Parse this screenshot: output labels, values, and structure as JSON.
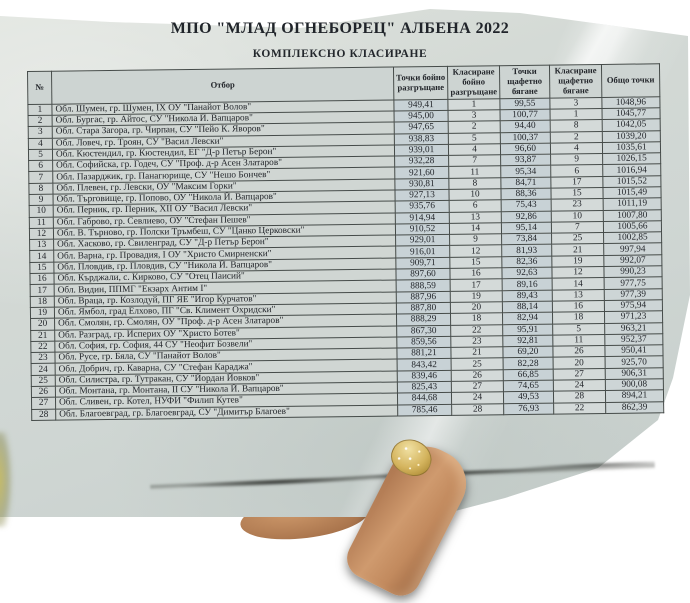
{
  "document": {
    "title": "МПО \"МЛАД ОГНЕБОРЕЦ\" АЛБЕНА 2022",
    "subtitle": "КОМПЛЕКСНО КЛАСИРАНЕ",
    "table": {
      "columns": [
        "№",
        "Отбор",
        "Точки бойно разгръщане",
        "Класиране бойно разгръщане",
        "Точки щафетно бягане",
        "Класиране щафетно бягане",
        "Общо точки"
      ],
      "rows": [
        {
          "num": 1,
          "team": "Обл. Шумен, гр. Шумен, IX ОУ \"Панайот Волов\"",
          "combat_points": "949,41",
          "combat_rank": "1",
          "relay_points": "99,55",
          "relay_rank": "3",
          "total": "1048,96"
        },
        {
          "num": 2,
          "team": "Обл. Бургас, гр. Айтос, СУ \"Никола Й. Вапцаров\"",
          "combat_points": "945,00",
          "combat_rank": "3",
          "relay_points": "100,77",
          "relay_rank": "1",
          "total": "1045,77"
        },
        {
          "num": 3,
          "team": "Обл. Стара Загора, гр. Чирпан, СУ \"Пейо К. Яворов\"",
          "combat_points": "947,65",
          "combat_rank": "2",
          "relay_points": "94,40",
          "relay_rank": "8",
          "total": "1042,05"
        },
        {
          "num": 4,
          "team": "Обл. Ловеч, гр. Троян, СУ \"Васил Левски\"",
          "combat_points": "938,83",
          "combat_rank": "5",
          "relay_points": "100,37",
          "relay_rank": "2",
          "total": "1039,20"
        },
        {
          "num": 5,
          "team": "Обл. Кюстендил, гр. Кюстендил, ЕГ \"Д-р Петър Берон\"",
          "combat_points": "939,01",
          "combat_rank": "4",
          "relay_points": "96,60",
          "relay_rank": "4",
          "total": "1035,61"
        },
        {
          "num": 6,
          "team": "Обл. Софийска, гр. Годеч, СУ \"Проф. д-р Асен Златаров\"",
          "combat_points": "932,28",
          "combat_rank": "7",
          "relay_points": "93,87",
          "relay_rank": "9",
          "total": "1026,15"
        },
        {
          "num": 7,
          "team": "Обл. Пазарджик, гр. Панагюрище, СУ \"Нешо Бончев\"",
          "combat_points": "921,60",
          "combat_rank": "11",
          "relay_points": "95,34",
          "relay_rank": "6",
          "total": "1016,94"
        },
        {
          "num": 8,
          "team": "Обл. Плевен, гр. Левски, ОУ \"Максим Горки\"",
          "combat_points": "930,81",
          "combat_rank": "8",
          "relay_points": "84,71",
          "relay_rank": "17",
          "total": "1015,52"
        },
        {
          "num": 9,
          "team": "Обл. Търговище, гр. Попово, ОУ \"Никола Й. Вапцаров\"",
          "combat_points": "927,13",
          "combat_rank": "10",
          "relay_points": "88,36",
          "relay_rank": "15",
          "total": "1015,49"
        },
        {
          "num": 10,
          "team": "Обл. Перник, гр. Перник, XII ОУ \"Васил Левски\"",
          "combat_points": "935,76",
          "combat_rank": "6",
          "relay_points": "75,43",
          "relay_rank": "23",
          "total": "1011,19"
        },
        {
          "num": 11,
          "team": "Обл. Габрово, гр. Севлиево, ОУ \"Стефан Пешев\"",
          "combat_points": "914,94",
          "combat_rank": "13",
          "relay_points": "92,86",
          "relay_rank": "10",
          "total": "1007,80"
        },
        {
          "num": 12,
          "team": "Обл. В. Търново, гр. Полски Тръмбеш, СУ \"Цанко Церковски\"",
          "combat_points": "910,52",
          "combat_rank": "14",
          "relay_points": "95,14",
          "relay_rank": "7",
          "total": "1005,66"
        },
        {
          "num": 13,
          "team": "Обл. Хасково, гр. Свиленград, СУ \"Д-р Петър Берон\"",
          "combat_points": "929,01",
          "combat_rank": "9",
          "relay_points": "73,84",
          "relay_rank": "25",
          "total": "1002,85"
        },
        {
          "num": 14,
          "team": "Обл. Варна, гр. Провадия, I ОУ \"Христо Смирненски\"",
          "combat_points": "916,01",
          "combat_rank": "12",
          "relay_points": "81,93",
          "relay_rank": "21",
          "total": "997,94"
        },
        {
          "num": 15,
          "team": "Обл. Пловдив, гр. Пловдив, СУ \"Никола Й. Вапцаров\"",
          "combat_points": "909,71",
          "combat_rank": "15",
          "relay_points": "82,36",
          "relay_rank": "19",
          "total": "992,07"
        },
        {
          "num": 16,
          "team": "Обл. Кърджали, с. Кирково, СУ \"Отец Паисий\"",
          "combat_points": "897,60",
          "combat_rank": "16",
          "relay_points": "92,63",
          "relay_rank": "12",
          "total": "990,23"
        },
        {
          "num": 17,
          "team": "Обл. Видин, ППМГ \"Екзарх Антим I\"",
          "combat_points": "888,59",
          "combat_rank": "17",
          "relay_points": "89,16",
          "relay_rank": "14",
          "total": "977,75"
        },
        {
          "num": 18,
          "team": "Обл. Враца, гр. Козлодуй, ПГ ЯЕ \"Игор Курчатов\"",
          "combat_points": "887,96",
          "combat_rank": "19",
          "relay_points": "89,43",
          "relay_rank": "13",
          "total": "977,39"
        },
        {
          "num": 19,
          "team": "Обл. Ямбол, град Елхово, ПГ \"Св. Климент Охридски\"",
          "combat_points": "887,80",
          "combat_rank": "20",
          "relay_points": "88,14",
          "relay_rank": "16",
          "total": "975,94"
        },
        {
          "num": 20,
          "team": "Обл. Смолян, гр. Смолян, ОУ \"Проф. д-р Асен Златаров\"",
          "combat_points": "888,29",
          "combat_rank": "18",
          "relay_points": "82,94",
          "relay_rank": "18",
          "total": "971,23"
        },
        {
          "num": 21,
          "team": "Обл. Разград, гр. Исперих ОУ \"Христо Ботев\"",
          "combat_points": "867,30",
          "combat_rank": "22",
          "relay_points": "95,91",
          "relay_rank": "5",
          "total": "963,21"
        },
        {
          "num": 22,
          "team": "Обл. София, гр. София, 44 СУ \"Неофит Бозвели\"",
          "combat_points": "859,56",
          "combat_rank": "23",
          "relay_points": "92,81",
          "relay_rank": "11",
          "total": "952,37"
        },
        {
          "num": 23,
          "team": "Обл. Русе, гр. Бяла, СУ \"Панайот Волов\"",
          "combat_points": "881,21",
          "combat_rank": "21",
          "relay_points": "69,20",
          "relay_rank": "26",
          "total": "950,41"
        },
        {
          "num": 24,
          "team": "Обл. Добрич, гр. Каварна, СУ \"Стефан Караджа\"",
          "combat_points": "843,42",
          "combat_rank": "25",
          "relay_points": "82,28",
          "relay_rank": "20",
          "total": "925,70"
        },
        {
          "num": 25,
          "team": "Обл. Силистра, гр. Тутракан, СУ \"Йордан Йовков\"",
          "combat_points": "839,46",
          "combat_rank": "26",
          "relay_points": "66,85",
          "relay_rank": "27",
          "total": "906,31"
        },
        {
          "num": 26,
          "team": "Обл. Монтана, гр. Монтана, II СУ \"Никола Й. Вапцаров\"",
          "combat_points": "825,43",
          "combat_rank": "27",
          "relay_points": "74,65",
          "relay_rank": "24",
          "total": "900,08"
        },
        {
          "num": 27,
          "team": "Обл. Сливен, гр. Котел, НУФИ \"Филип Кутев\"",
          "combat_points": "844,68",
          "combat_rank": "24",
          "relay_points": "49,53",
          "relay_rank": "28",
          "total": "894,21"
        },
        {
          "num": 28,
          "team": "Обл. Благоевград, гр. Благоевград, СУ \"Димитър Благоев\"",
          "combat_points": "785,46",
          "combat_rank": "28",
          "relay_points": "76,93",
          "relay_rank": "22",
          "total": "862,39"
        }
      ]
    }
  },
  "colors": {
    "paper": "#d3d9d5",
    "table_border": "#454b49",
    "ink": "#23262b",
    "points_cell": "#c8d2d6",
    "rank_cell": "#d4dad9",
    "foliage_dark": "#1a1f12",
    "foliage_leaf": "#3c4a26",
    "skin": "#c28a5e",
    "nail_glitter": "#d4b45e"
  }
}
